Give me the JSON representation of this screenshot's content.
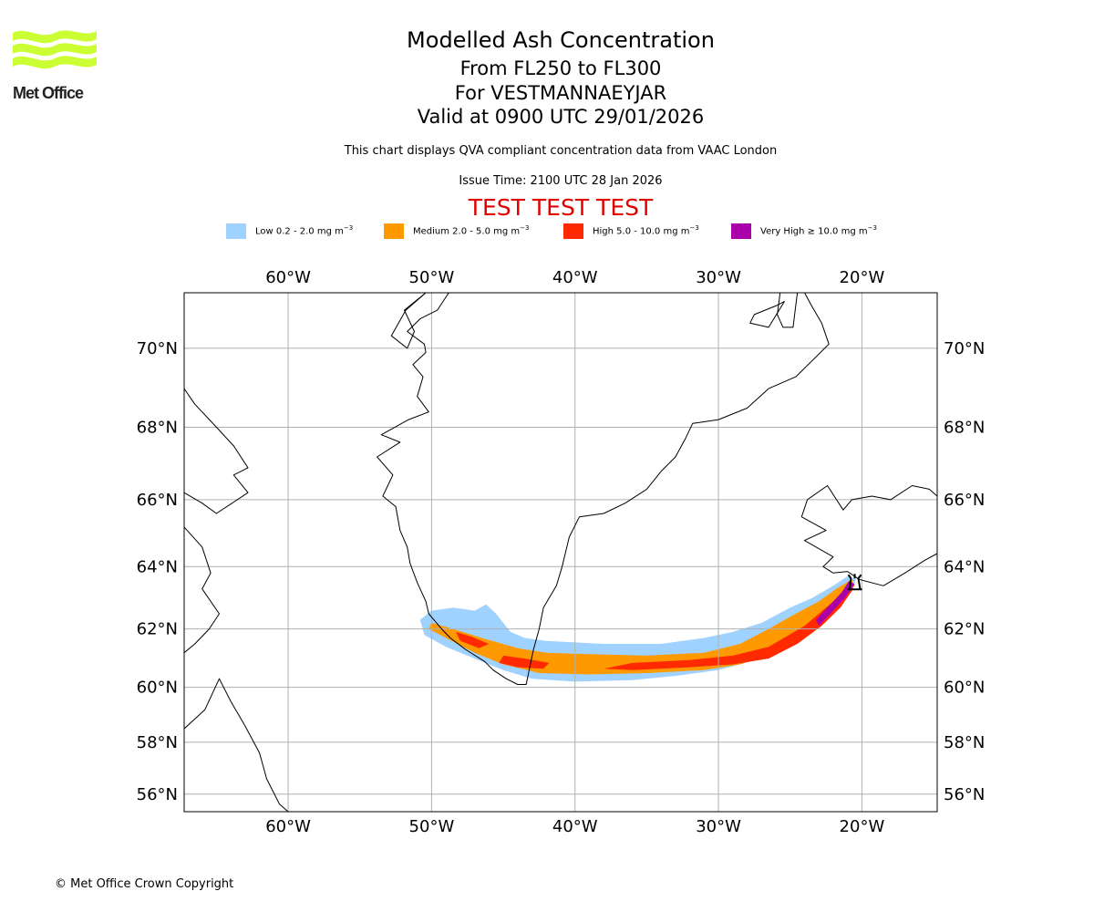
{
  "header": {
    "title": "Modelled Ash Concentration",
    "level_range": "From FL250 to FL300",
    "location": "For VESTMANNAEYJAR",
    "valid_time": "Valid at 0900 UTC 29/01/2026",
    "description": "This chart displays QVA compliant concentration data from VAAC London",
    "issue_time": "Issue Time: 2100 UTC 28 Jan 2026",
    "test_banner": "TEST TEST TEST"
  },
  "logo": {
    "text": "Met Office",
    "icon": "met-office-waves-logo",
    "color": "#ccff33"
  },
  "legend": [
    {
      "name": "low",
      "label": "Low 0.2 - 2.0 mg m",
      "unit_exp": "−3",
      "color": "#a0d2ff"
    },
    {
      "name": "medium",
      "label": "Medium 2.0 - 5.0 mg m",
      "unit_exp": "−3",
      "color": "#ff9900"
    },
    {
      "name": "high",
      "label": "High 5.0 - 10.0 mg m",
      "unit_exp": "−3",
      "color": "#ff2a00"
    },
    {
      "name": "very-high",
      "label": "Very High  ≥  10.0 mg m",
      "unit_exp": "−3",
      "color": "#aa00aa"
    }
  ],
  "map": {
    "extent": {
      "lon": [
        -67.25,
        -14.75
      ],
      "lat": [
        55.3,
        71.3
      ]
    },
    "lon_ticks": [
      {
        "value": -60,
        "label": "60°W"
      },
      {
        "value": -50,
        "label": "50°W"
      },
      {
        "value": -40,
        "label": "40°W"
      },
      {
        "value": -30,
        "label": "30°W"
      },
      {
        "value": -20,
        "label": "20°W"
      }
    ],
    "lat_ticks": [
      {
        "value": 70,
        "label": "70°N"
      },
      {
        "value": 68,
        "label": "68°N"
      },
      {
        "value": 66,
        "label": "66°N"
      },
      {
        "value": 64,
        "label": "64°N"
      },
      {
        "value": 62,
        "label": "62°N"
      },
      {
        "value": 60,
        "label": "60°N"
      },
      {
        "value": 58,
        "label": "58°N"
      },
      {
        "value": 56,
        "label": "56°N"
      }
    ],
    "volcano": {
      "name": "VESTMANNAEYJAR",
      "lon": -20.5,
      "lat": 63.4,
      "icon": "volcano-marker-icon"
    },
    "plume": {
      "low": [
        [
          -50.8,
          62.3
        ],
        [
          -50.0,
          62.6
        ],
        [
          -48.5,
          62.7
        ],
        [
          -47.0,
          62.6
        ],
        [
          -46.2,
          62.8
        ],
        [
          -45.5,
          62.5
        ],
        [
          -44.5,
          61.9
        ],
        [
          -43.5,
          61.7
        ],
        [
          -42,
          61.6
        ],
        [
          -38,
          61.5
        ],
        [
          -34,
          61.5
        ],
        [
          -31,
          61.7
        ],
        [
          -29,
          61.9
        ],
        [
          -27,
          62.2
        ],
        [
          -25,
          62.7
        ],
        [
          -23.5,
          63.0
        ],
        [
          -22,
          63.4
        ],
        [
          -21,
          63.7
        ],
        [
          -20.4,
          63.6
        ],
        [
          -20.8,
          63.2
        ],
        [
          -22,
          62.6
        ],
        [
          -23.5,
          62.0
        ],
        [
          -25,
          61.4
        ],
        [
          -27,
          61.0
        ],
        [
          -30,
          60.6
        ],
        [
          -33,
          60.4
        ],
        [
          -36,
          60.25
        ],
        [
          -40,
          60.2
        ],
        [
          -43,
          60.3
        ],
        [
          -45,
          60.6
        ],
        [
          -47,
          61.0
        ],
        [
          -49,
          61.4
        ],
        [
          -50.5,
          61.8
        ]
      ],
      "medium": [
        [
          -50.0,
          62.2
        ],
        [
          -48.5,
          62.0
        ],
        [
          -46.5,
          61.7
        ],
        [
          -44,
          61.35
        ],
        [
          -42,
          61.2
        ],
        [
          -39,
          61.15
        ],
        [
          -35,
          61.1
        ],
        [
          -31,
          61.2
        ],
        [
          -28.5,
          61.5
        ],
        [
          -26.5,
          62.0
        ],
        [
          -25,
          62.4
        ],
        [
          -23,
          62.9
        ],
        [
          -21.8,
          63.3
        ],
        [
          -20.7,
          63.6
        ],
        [
          -20.5,
          63.4
        ],
        [
          -21.3,
          63.0
        ],
        [
          -22.5,
          62.4
        ],
        [
          -24,
          61.8
        ],
        [
          -26,
          61.2
        ],
        [
          -28.5,
          60.8
        ],
        [
          -31,
          60.6
        ],
        [
          -35,
          60.5
        ],
        [
          -39,
          60.45
        ],
        [
          -42.5,
          60.5
        ],
        [
          -45,
          60.8
        ],
        [
          -47,
          61.2
        ],
        [
          -49,
          61.7
        ],
        [
          -50.2,
          62.0
        ]
      ],
      "high": [
        [
          -24,
          62.1
        ],
        [
          -22.5,
          62.7
        ],
        [
          -21.5,
          63.1
        ],
        [
          -20.8,
          63.5
        ],
        [
          -20.6,
          63.3
        ],
        [
          -21.5,
          62.7
        ],
        [
          -22.8,
          62.1
        ],
        [
          -24.5,
          61.5
        ],
        [
          -26.5,
          61.0
        ],
        [
          -29,
          60.8
        ],
        [
          -32,
          60.7
        ],
        [
          -36,
          60.6
        ],
        [
          -38,
          60.65
        ],
        [
          -36,
          60.85
        ],
        [
          -32,
          60.95
        ],
        [
          -29,
          61.1
        ],
        [
          -26.5,
          61.4
        ]
      ],
      "high_patches": [
        [
          [
            -48.3,
            61.9
          ],
          [
            -47.3,
            61.75
          ],
          [
            -46,
            61.5
          ],
          [
            -46.7,
            61.35
          ],
          [
            -48,
            61.6
          ]
        ],
        [
          [
            -45,
            61.1
          ],
          [
            -43.5,
            61.0
          ],
          [
            -41.8,
            60.85
          ],
          [
            -42.2,
            60.65
          ],
          [
            -44,
            60.7
          ],
          [
            -45.3,
            60.85
          ]
        ]
      ],
      "very_high": [
        [
          -20.9,
          63.55
        ],
        [
          -20.5,
          63.45
        ],
        [
          -21.2,
          63.0
        ],
        [
          -22.2,
          62.5
        ],
        [
          -23.0,
          62.1
        ],
        [
          -23.2,
          62.3
        ],
        [
          -22.2,
          62.8
        ],
        [
          -21.4,
          63.2
        ]
      ]
    },
    "coastlines": {
      "greenland_west": [
        [
          -48.8,
          71.3
        ],
        [
          -49.6,
          70.9
        ],
        [
          -50.8,
          70.7
        ],
        [
          -51.7,
          70.4
        ],
        [
          -50.5,
          70.1
        ],
        [
          -50.4,
          69.9
        ],
        [
          -51.3,
          69.6
        ],
        [
          -50.6,
          69.3
        ],
        [
          -51.0,
          68.8
        ],
        [
          -50.2,
          68.4
        ],
        [
          -51.6,
          68.2
        ],
        [
          -53.5,
          67.8
        ],
        [
          -52.2,
          67.6
        ],
        [
          -53.8,
          67.2
        ],
        [
          -52.7,
          66.7
        ],
        [
          -53.4,
          66.1
        ],
        [
          -52.5,
          65.8
        ],
        [
          -52.2,
          65.1
        ],
        [
          -51.7,
          64.6
        ],
        [
          -51.5,
          64.1
        ],
        [
          -51.0,
          63.5
        ],
        [
          -50.4,
          62.9
        ],
        [
          -50.2,
          62.5
        ],
        [
          -49.3,
          62.0
        ],
        [
          -48.7,
          61.7
        ],
        [
          -47.6,
          61.3
        ],
        [
          -46.3,
          60.9
        ],
        [
          -45.7,
          60.6
        ],
        [
          -44.8,
          60.3
        ],
        [
          -44.0,
          60.1
        ],
        [
          -43.4,
          60.1
        ],
        [
          -43.2,
          60.6
        ],
        [
          -42.9,
          61.3
        ],
        [
          -42.5,
          62.0
        ],
        [
          -42.2,
          62.7
        ],
        [
          -41.3,
          63.4
        ],
        [
          -40.9,
          64.0
        ],
        [
          -40.4,
          64.9
        ],
        [
          -39.7,
          65.5
        ],
        [
          -38.0,
          65.6
        ],
        [
          -36.5,
          65.9
        ],
        [
          -35.0,
          66.3
        ],
        [
          -34.0,
          66.8
        ],
        [
          -33.0,
          67.2
        ],
        [
          -32.3,
          67.7
        ],
        [
          -31.8,
          68.1
        ],
        [
          -30.0,
          68.2
        ],
        [
          -28.0,
          68.5
        ],
        [
          -26.5,
          69.0
        ],
        [
          -24.6,
          69.3
        ],
        [
          -22.3,
          70.1
        ],
        [
          -22.8,
          70.6
        ],
        [
          -23.5,
          71.0
        ],
        [
          -24.0,
          71.3
        ]
      ],
      "greenland_fjord_islands": [
        [
          -50.4,
          71.3
        ],
        [
          -51.8,
          70.9
        ],
        [
          -52.8,
          70.3
        ],
        [
          -51.7,
          70.0
        ],
        [
          -51.2,
          70.4
        ],
        [
          -51.9,
          70.9
        ]
      ],
      "scoresby": [
        [
          -25.7,
          71.3
        ],
        [
          -25.9,
          70.8
        ],
        [
          -25.5,
          70.5
        ],
        [
          -24.8,
          70.5
        ],
        [
          -24.5,
          71.3
        ]
      ],
      "scoresby_island": [
        [
          -27.5,
          70.8
        ],
        [
          -26.0,
          71.0
        ],
        [
          -25.4,
          71.1
        ],
        [
          -26.5,
          70.5
        ],
        [
          -27.8,
          70.6
        ]
      ],
      "iceland": [
        [
          -22.0,
          63.8
        ],
        [
          -22.7,
          64.0
        ],
        [
          -22.0,
          64.3
        ],
        [
          -24.0,
          64.8
        ],
        [
          -22.5,
          65.1
        ],
        [
          -24.2,
          65.5
        ],
        [
          -23.8,
          66.0
        ],
        [
          -22.4,
          66.4
        ],
        [
          -21.3,
          65.7
        ],
        [
          -20.7,
          66.0
        ],
        [
          -19.3,
          66.1
        ],
        [
          -18.0,
          66.0
        ],
        [
          -16.5,
          66.4
        ],
        [
          -15.3,
          66.3
        ],
        [
          -14.75,
          66.1
        ]
      ],
      "iceland_south": [
        [
          -22.0,
          63.8
        ],
        [
          -21.0,
          63.85
        ],
        [
          -20.2,
          63.6
        ],
        [
          -18.5,
          63.4
        ],
        [
          -17.0,
          63.8
        ],
        [
          -15.6,
          64.2
        ],
        [
          -14.75,
          64.4
        ]
      ],
      "baffin": [
        [
          -67.25,
          69.0
        ],
        [
          -66.5,
          68.6
        ],
        [
          -65.0,
          68.0
        ],
        [
          -63.8,
          67.5
        ],
        [
          -62.8,
          66.9
        ],
        [
          -63.8,
          66.7
        ],
        [
          -62.8,
          66.2
        ],
        [
          -65.0,
          65.6
        ],
        [
          -66.0,
          65.9
        ],
        [
          -67.25,
          66.2
        ]
      ],
      "labrador": [
        [
          -67.25,
          65.2
        ],
        [
          -66.0,
          64.6
        ],
        [
          -65.4,
          63.8
        ],
        [
          -66.0,
          63.3
        ],
        [
          -64.8,
          62.5
        ],
        [
          -65.5,
          62.0
        ],
        [
          -66.5,
          61.5
        ],
        [
          -67.25,
          61.2
        ]
      ],
      "labrador_south": [
        [
          -67.25,
          58.5
        ],
        [
          -65.8,
          59.2
        ],
        [
          -64.8,
          60.3
        ],
        [
          -64.0,
          59.5
        ],
        [
          -63.0,
          58.6
        ],
        [
          -62.0,
          57.6
        ],
        [
          -61.5,
          56.6
        ],
        [
          -60.6,
          55.6
        ],
        [
          -60.0,
          55.3
        ]
      ]
    }
  },
  "footer": {
    "copyright": "© Met Office Crown Copyright"
  }
}
